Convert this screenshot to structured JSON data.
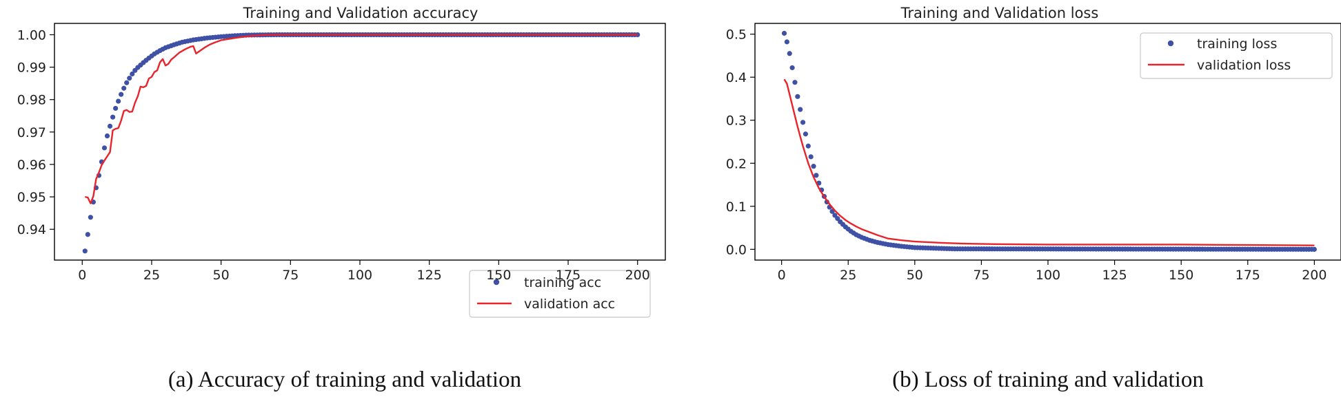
{
  "chart_data": [
    {
      "type": "scatter",
      "title": "Training and Validation accuracy",
      "caption": "(a)  Accuracy of training and validation",
      "xlim": [
        -10,
        210
      ],
      "ylim": [
        0.9305,
        1.0035
      ],
      "xticks": [
        0,
        25,
        50,
        75,
        100,
        125,
        150,
        175,
        200
      ],
      "yticks": [
        0.94,
        0.95,
        0.96,
        0.97,
        0.98,
        0.99,
        1.0
      ],
      "ytick_labels": [
        "0.94",
        "0.95",
        "0.96",
        "0.97",
        "0.98",
        "0.99",
        "1.00"
      ],
      "legend_position": "lower-right",
      "series": [
        {
          "name": "training acc",
          "style": "markers",
          "color": "#3f51a5",
          "x": [
            1,
            2,
            3,
            4,
            5,
            6,
            7,
            8,
            9,
            10,
            11,
            12,
            13,
            14,
            15,
            16,
            17,
            18,
            19,
            20,
            22,
            24,
            26,
            28,
            30,
            33,
            36,
            40,
            45,
            50,
            55,
            60,
            65,
            70,
            200
          ],
          "y": [
            0.9333,
            0.9384,
            0.9437,
            0.9484,
            0.9528,
            0.9566,
            0.9608,
            0.9651,
            0.9688,
            0.9718,
            0.9746,
            0.9773,
            0.9795,
            0.9816,
            0.9835,
            0.9852,
            0.9866,
            0.9879,
            0.989,
            0.9899,
            0.9914,
            0.9928,
            0.9941,
            0.9951,
            0.996,
            0.9969,
            0.9977,
            0.9984,
            0.999,
            0.9994,
            0.9997,
            0.9999,
            0.99995,
            1.0,
            1.0
          ]
        },
        {
          "name": "validation acc",
          "style": "line",
          "color": "#e8242a",
          "x": [
            1,
            2,
            3,
            4,
            5,
            6,
            7,
            8,
            9,
            10,
            11,
            12,
            13,
            14,
            15,
            16,
            17,
            18,
            19,
            20,
            21,
            22,
            23,
            24,
            25,
            26,
            27,
            28,
            29,
            30,
            31,
            32,
            33,
            35,
            37,
            39,
            40,
            41,
            42,
            44,
            46,
            48,
            50,
            55,
            60,
            65,
            70,
            200
          ],
          "y": [
            0.95,
            0.9498,
            0.948,
            0.9502,
            0.9555,
            0.9575,
            0.9598,
            0.9612,
            0.9625,
            0.9638,
            0.9705,
            0.971,
            0.9712,
            0.9735,
            0.9765,
            0.9768,
            0.9762,
            0.9763,
            0.979,
            0.981,
            0.984,
            0.9838,
            0.9842,
            0.9865,
            0.987,
            0.9885,
            0.989,
            0.9915,
            0.9925,
            0.9905,
            0.991,
            0.9923,
            0.993,
            0.9945,
            0.9955,
            0.9963,
            0.9965,
            0.9942,
            0.9948,
            0.996,
            0.997,
            0.9977,
            0.9983,
            0.999,
            0.9996,
            0.9999,
            1.0,
            1.0
          ]
        }
      ]
    },
    {
      "type": "scatter",
      "title": "Training and Validation loss",
      "caption": "(b)  Loss of training and validation",
      "xlim": [
        -10,
        210
      ],
      "ylim": [
        -0.025,
        0.525
      ],
      "xticks": [
        0,
        25,
        50,
        75,
        100,
        125,
        150,
        175,
        200
      ],
      "yticks": [
        0.0,
        0.1,
        0.2,
        0.3,
        0.4,
        0.5
      ],
      "ytick_labels": [
        "0.0",
        "0.1",
        "0.2",
        "0.3",
        "0.4",
        "0.5"
      ],
      "legend_position": "upper-right",
      "series": [
        {
          "name": "training loss",
          "style": "markers",
          "color": "#3f51a5",
          "x": [
            1,
            2,
            3,
            4,
            5,
            6,
            7,
            8,
            9,
            10,
            11,
            12,
            13,
            14,
            15,
            16,
            17,
            18,
            19,
            20,
            22,
            24,
            26,
            28,
            30,
            33,
            36,
            40,
            45,
            50,
            55,
            60,
            65,
            70,
            200
          ],
          "y": [
            0.502,
            0.482,
            0.455,
            0.422,
            0.388,
            0.355,
            0.325,
            0.295,
            0.268,
            0.24,
            0.215,
            0.193,
            0.172,
            0.154,
            0.138,
            0.123,
            0.11,
            0.098,
            0.088,
            0.079,
            0.064,
            0.052,
            0.042,
            0.034,
            0.028,
            0.021,
            0.016,
            0.011,
            0.007,
            0.004,
            0.003,
            0.002,
            0.001,
            0.001,
            0.0
          ]
        },
        {
          "name": "validation loss",
          "style": "line",
          "color": "#e8242a",
          "x": [
            1,
            2,
            3,
            4,
            5,
            6,
            7,
            8,
            9,
            10,
            12,
            14,
            16,
            18,
            20,
            22,
            24,
            26,
            28,
            30,
            33,
            36,
            40,
            45,
            50,
            60,
            70,
            80,
            100,
            125,
            150,
            175,
            200
          ],
          "y": [
            0.395,
            0.385,
            0.36,
            0.335,
            0.31,
            0.285,
            0.262,
            0.24,
            0.22,
            0.2,
            0.168,
            0.142,
            0.122,
            0.105,
            0.09,
            0.078,
            0.068,
            0.06,
            0.053,
            0.047,
            0.04,
            0.033,
            0.025,
            0.021,
            0.018,
            0.015,
            0.013,
            0.012,
            0.011,
            0.011,
            0.011,
            0.01,
            0.009
          ]
        }
      ]
    }
  ]
}
